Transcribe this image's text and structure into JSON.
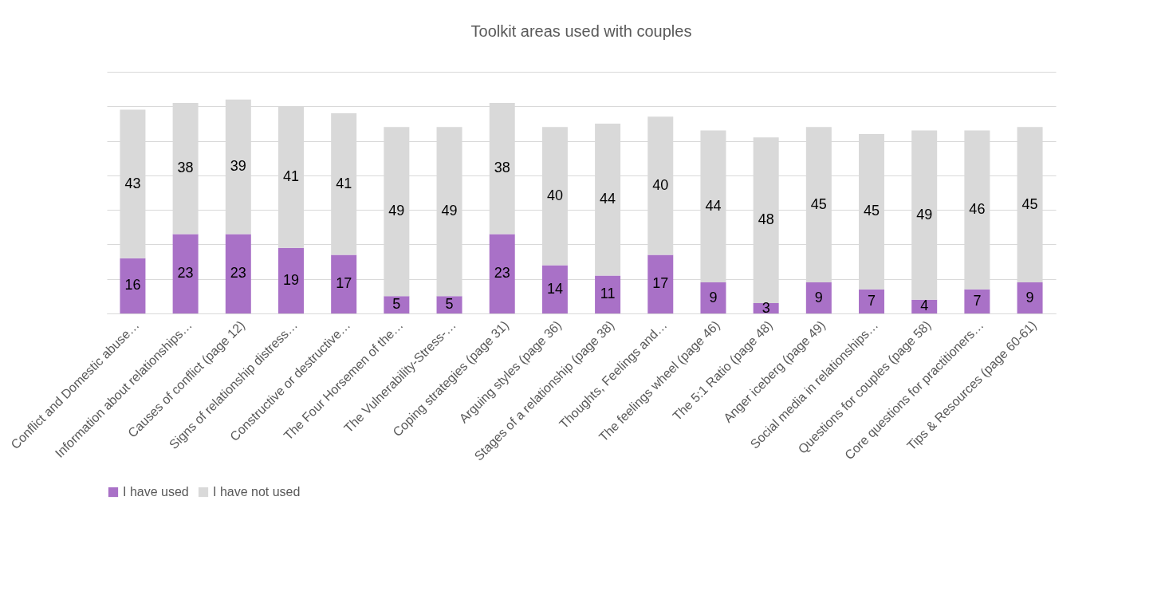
{
  "chart_data": {
    "type": "bar",
    "title": "Toolkit areas used with couples",
    "stacked": true,
    "categories": [
      "Conflict and Domestic abuse…",
      "Information about relationships…",
      "Causes of conflict (page 12)",
      "Signs of relationship distress…",
      "Constructive or destructive…",
      "The Four Horsemen of the…",
      "The Vulnerability-Stress-…",
      "Coping strategies (page 31)",
      "Arguing styles (page 36)",
      "Stages of a relationship (page 38)",
      "Thoughts, Feelings and…",
      "The feelings wheel (page 46)",
      "The 5:1 Ratio (page 48)",
      "Anger iceberg (page 49)",
      "Social media in relationships…",
      "Questions for couples (page 58)",
      "Core questions for practitioners…",
      "Tips & Resources (page 60-61)"
    ],
    "series": [
      {
        "name": "I have used",
        "color": "#a971c7",
        "values": [
          16,
          23,
          23,
          19,
          17,
          5,
          5,
          23,
          14,
          11,
          17,
          9,
          3,
          9,
          7,
          4,
          7,
          9
        ]
      },
      {
        "name": "I have not used",
        "color": "#d9d9d9",
        "values": [
          43,
          38,
          39,
          41,
          41,
          49,
          49,
          38,
          40,
          44,
          40,
          44,
          48,
          45,
          45,
          49,
          46,
          45
        ]
      }
    ],
    "ylim": [
      0,
      70
    ],
    "yticks": [
      0,
      10,
      20,
      30,
      40,
      50,
      60,
      70
    ],
    "grid": "y",
    "tick_labels": "x",
    "data_labels": true,
    "legend": "bottom"
  }
}
